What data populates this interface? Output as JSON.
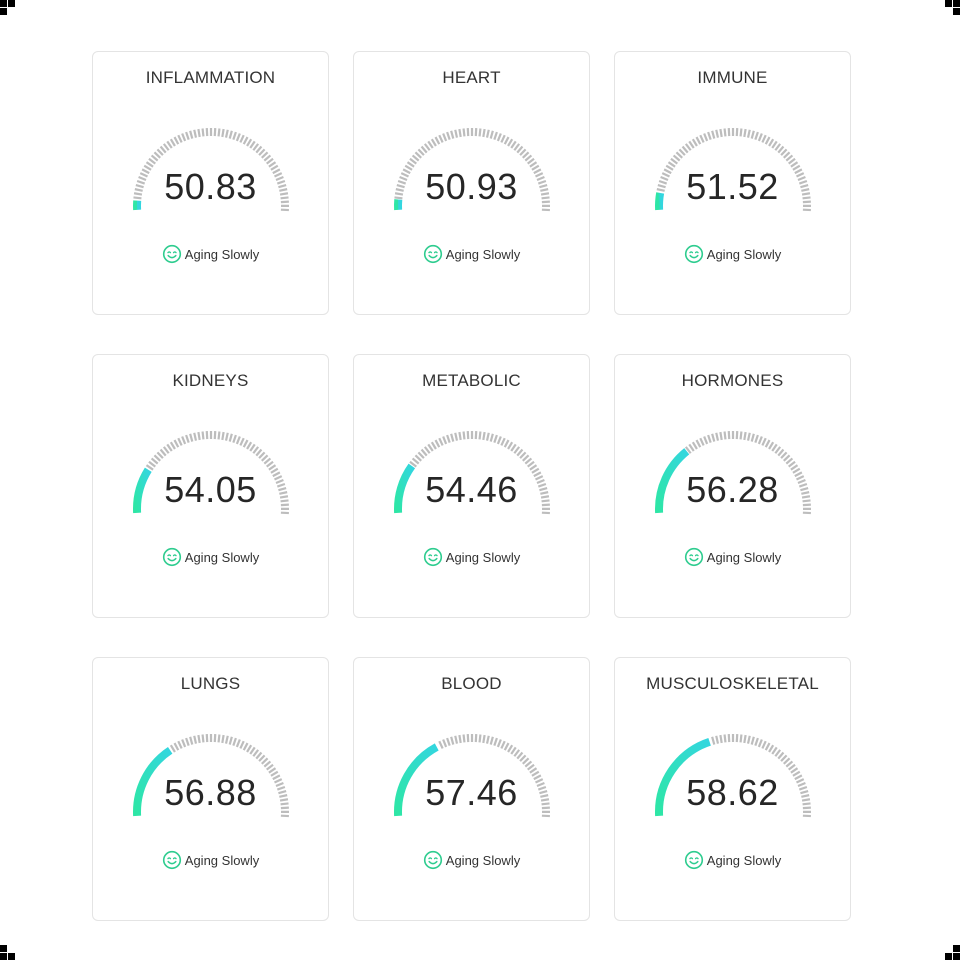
{
  "colors": {
    "accent_start": "#2ee6a6",
    "accent_end": "#33d6df",
    "tick": "#bdbdbd",
    "status_icon": "#2ecc8f",
    "card_border": "#e4e4e4"
  },
  "gauge_scale": {
    "min": 50,
    "max": 71.5
  },
  "cards": [
    {
      "title": "INFLAMMATION",
      "value": "50.83",
      "status": "Aging Slowly",
      "status_icon": "smile-face-icon"
    },
    {
      "title": "HEART",
      "value": "50.93",
      "status": "Aging Slowly",
      "status_icon": "smile-face-icon"
    },
    {
      "title": "IMMUNE",
      "value": "51.52",
      "status": "Aging Slowly",
      "status_icon": "smile-face-icon"
    },
    {
      "title": "KIDNEYS",
      "value": "54.05",
      "status": "Aging Slowly",
      "status_icon": "smile-face-icon"
    },
    {
      "title": "METABOLIC",
      "value": "54.46",
      "status": "Aging Slowly",
      "status_icon": "smile-face-icon"
    },
    {
      "title": "HORMONES",
      "value": "56.28",
      "status": "Aging Slowly",
      "status_icon": "smile-face-icon"
    },
    {
      "title": "LUNGS",
      "value": "56.88",
      "status": "Aging Slowly",
      "status_icon": "smile-face-icon"
    },
    {
      "title": "BLOOD",
      "value": "57.46",
      "status": "Aging Slowly",
      "status_icon": "smile-face-icon"
    },
    {
      "title": "MUSCULOSKELETAL",
      "value": "58.62",
      "status": "Aging Slowly",
      "status_icon": "smile-face-icon"
    }
  ]
}
